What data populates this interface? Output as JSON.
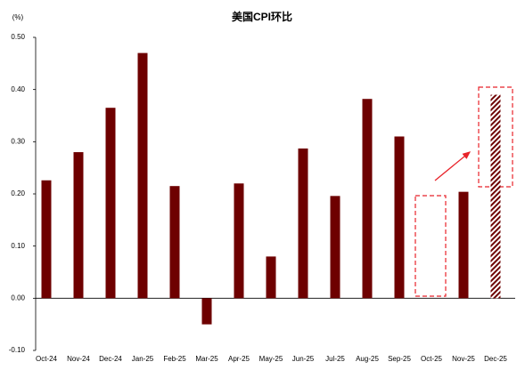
{
  "chart_data": {
    "type": "bar",
    "title": "美国CPI环比",
    "y_unit": "(%)",
    "categories": [
      "Oct-24",
      "Nov-24",
      "Dec-24",
      "Jan-25",
      "Feb-25",
      "Mar-25",
      "Apr-25",
      "May-25",
      "Jun-25",
      "Jul-25",
      "Aug-25",
      "Sep-25",
      "Oct-25",
      "Nov-25",
      "Dec-25"
    ],
    "values": [
      0.226,
      0.28,
      0.365,
      0.47,
      0.215,
      -0.05,
      0.22,
      0.08,
      0.287,
      0.196,
      0.382,
      0.31,
      null,
      0.204,
      0.39
    ],
    "color": "#6e0000",
    "ylim": [
      -0.1,
      0.5
    ],
    "yticks": [
      {
        "value": -0.1,
        "label": "-0.10"
      },
      {
        "value": 0,
        "label": "0.00"
      },
      {
        "value": 0.1,
        "label": "0.10"
      },
      {
        "value": 0.2,
        "label": "0.20"
      },
      {
        "value": 0.3,
        "label": "0.30"
      },
      {
        "value": 0.4,
        "label": "0.40"
      },
      {
        "value": 0.5,
        "label": "0.50"
      }
    ]
  }
}
